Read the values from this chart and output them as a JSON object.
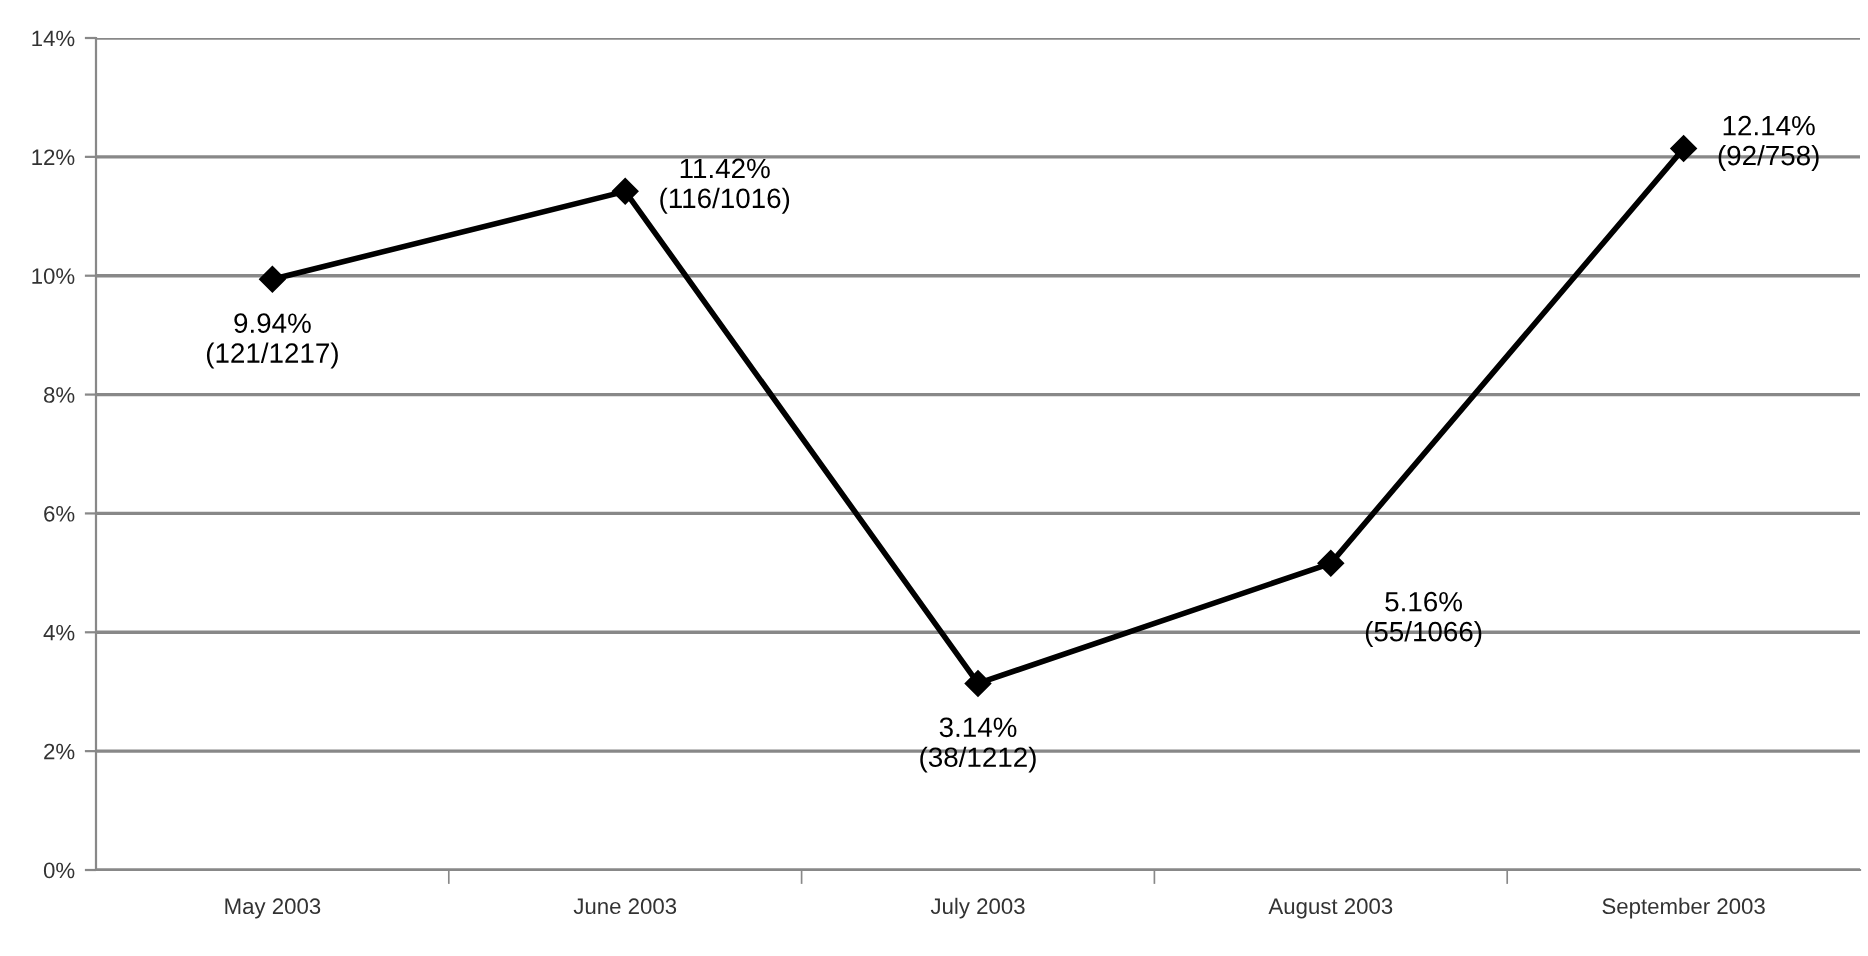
{
  "chart_data": {
    "type": "line",
    "categories": [
      "May 2003",
      "June 2003",
      "July 2003",
      "August 2003",
      "September 2003"
    ],
    "series": [
      {
        "color": "#000000",
        "values": [
          9.94,
          11.42,
          3.14,
          5.16,
          12.14
        ],
        "value_labels": [
          "9.94%\n(121/1217)",
          "11.42%\n(116/1016)",
          "3.14%\n(38/1212)",
          "5.16%\n(55/1066)",
          "12.14%\n(92/758)"
        ]
      }
    ],
    "ylim": [
      0,
      14
    ],
    "yticks": [
      {
        "value": 0,
        "label": "0%"
      },
      {
        "value": 2,
        "label": "2%"
      },
      {
        "value": 4,
        "label": "4%"
      },
      {
        "value": 6,
        "label": "6%"
      },
      {
        "value": 8,
        "label": "8%"
      },
      {
        "value": 10,
        "label": "10%"
      },
      {
        "value": 12,
        "label": "12%"
      },
      {
        "value": 14,
        "label": "14%"
      }
    ],
    "grid": "y",
    "marker": "diamond",
    "line_style": "solid"
  }
}
